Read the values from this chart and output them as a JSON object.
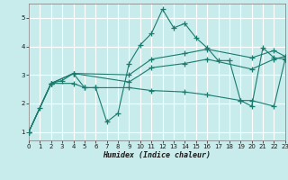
{
  "xlabel": "Humidex (Indice chaleur)",
  "xlim": [
    0,
    23
  ],
  "ylim": [
    0.7,
    5.5
  ],
  "yticks": [
    1,
    2,
    3,
    4,
    5
  ],
  "xticks": [
    0,
    1,
    2,
    3,
    4,
    5,
    6,
    7,
    8,
    9,
    10,
    11,
    12,
    13,
    14,
    15,
    16,
    17,
    18,
    19,
    20,
    21,
    22,
    23
  ],
  "background_color": "#c8ecec",
  "grid_color": "#ffffff",
  "line_color": "#1a7a6e",
  "lines": [
    {
      "x": [
        0,
        1,
        2,
        3,
        4,
        5,
        6,
        7,
        8,
        9,
        10,
        11,
        12,
        13,
        14,
        15,
        16,
        17,
        18,
        19,
        20,
        21,
        22,
        23
      ],
      "y": [
        1.0,
        1.85,
        2.7,
        2.8,
        3.05,
        2.55,
        2.55,
        1.35,
        1.65,
        3.4,
        4.05,
        4.45,
        5.3,
        4.65,
        4.8,
        4.3,
        3.95,
        3.5,
        3.5,
        2.1,
        1.9,
        3.95,
        3.6,
        3.55
      ]
    },
    {
      "x": [
        0,
        2,
        4,
        9,
        11,
        14,
        16,
        20,
        22,
        23
      ],
      "y": [
        1.0,
        2.7,
        3.05,
        3.0,
        3.55,
        3.75,
        3.9,
        3.6,
        3.85,
        3.65
      ]
    },
    {
      "x": [
        0,
        2,
        4,
        9,
        11,
        14,
        16,
        20,
        22,
        23
      ],
      "y": [
        1.0,
        2.7,
        3.05,
        2.75,
        3.25,
        3.4,
        3.55,
        3.2,
        3.55,
        3.65
      ]
    },
    {
      "x": [
        0,
        2,
        4,
        5,
        6,
        9,
        11,
        14,
        16,
        19,
        20,
        22,
        23
      ],
      "y": [
        1.0,
        2.7,
        2.7,
        2.55,
        2.55,
        2.55,
        2.45,
        2.4,
        2.3,
        2.1,
        2.1,
        1.9,
        3.55
      ]
    }
  ]
}
